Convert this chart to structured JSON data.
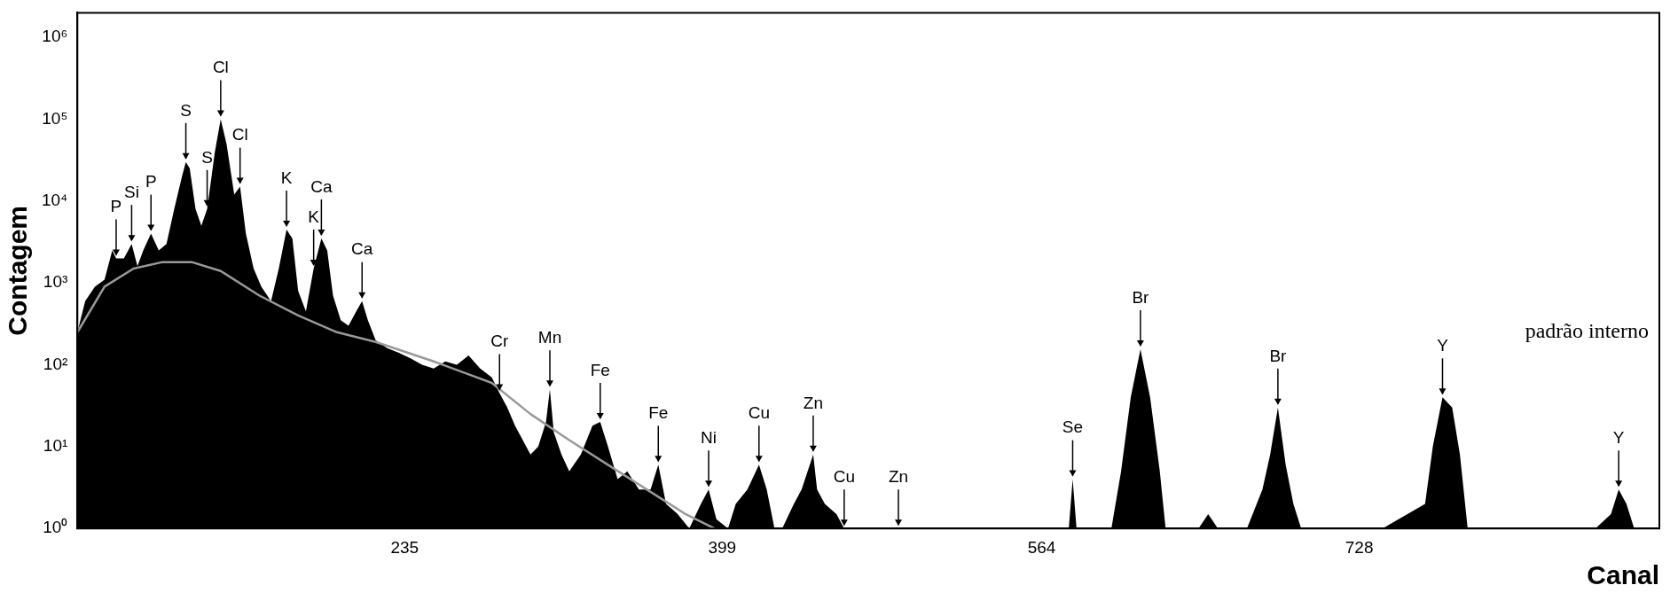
{
  "chart_data": {
    "type": "area",
    "xlabel": "Canal",
    "ylabel": "Contagem",
    "log": "y",
    "grid": false,
    "legend": false,
    "xlim": [
      66,
      883
    ],
    "xticks": [
      235,
      399,
      564,
      728
    ],
    "ylim": [
      1,
      2000000
    ],
    "yticks": [
      {
        "value": 1,
        "label": "10⁰"
      },
      {
        "value": 10,
        "label": "10¹"
      },
      {
        "value": 100,
        "label": "10²"
      },
      {
        "value": 1000,
        "label": "10³"
      },
      {
        "value": 10000,
        "label": "10⁴"
      },
      {
        "value": 100000,
        "label": "10⁵"
      },
      {
        "value": 1000000,
        "label": "10⁶"
      }
    ],
    "series": [
      {
        "type": "area",
        "color": "#000000",
        "x": [
          66,
          70,
          75,
          80,
          84,
          86,
          90,
          94,
          97,
          100,
          104,
          108,
          112,
          116,
          120,
          122,
          124,
          127,
          130,
          133,
          137,
          140,
          143,
          147,
          150,
          153,
          157,
          161,
          166,
          170,
          174,
          177,
          180,
          184,
          188,
          192,
          195,
          198,
          202,
          206,
          210,
          213,
          216,
          220,
          226,
          232,
          238,
          244,
          250,
          256,
          262,
          268,
          274,
          280,
          284,
          288,
          292,
          296,
          300,
          304,
          308,
          310,
          312,
          316,
          320,
          326,
          332,
          336,
          340,
          345,
          350,
          356,
          362,
          366,
          370,
          376,
          382,
          388,
          392,
          396,
          402,
          406,
          412,
          418,
          422,
          426,
          430,
          436,
          440,
          446,
          448,
          452,
          458,
          462,
          470,
          480,
          490,
          500,
          520,
          540,
          560,
          578,
          580,
          582,
          600,
          605,
          610,
          615,
          620,
          625,
          628,
          645,
          650,
          655,
          670,
          678,
          682,
          686,
          690,
          694,
          698,
          740,
          762,
          766,
          771,
          776,
          780,
          784,
          850,
          858,
          862,
          866,
          870,
          883
        ],
        "values": [
          250,
          600,
          900,
          1100,
          2500,
          2000,
          2000,
          3000,
          1600,
          2500,
          4000,
          2500,
          3000,
          8000,
          20000,
          30000,
          25000,
          8000,
          5000,
          8000,
          40000,
          100000,
          50000,
          12000,
          15000,
          4000,
          1500,
          900,
          600,
          1500,
          4500,
          3500,
          800,
          450,
          1500,
          3500,
          2500,
          700,
          350,
          300,
          450,
          600,
          350,
          200,
          160,
          140,
          120,
          100,
          90,
          110,
          100,
          130,
          90,
          70,
          45,
          30,
          18,
          12,
          8,
          10,
          20,
          50,
          15,
          8,
          5,
          8,
          18,
          20,
          10,
          4,
          5,
          3,
          3,
          6,
          2,
          1.5,
          1,
          2,
          3,
          1.3,
          1,
          2,
          3,
          6,
          3,
          1,
          1,
          2,
          3,
          8,
          3,
          2,
          1.5,
          1,
          1,
          1,
          1,
          1,
          1,
          1,
          1,
          1,
          4,
          1,
          1,
          5,
          40,
          155,
          40,
          5,
          1,
          1,
          1.5,
          1,
          1,
          3,
          8,
          30,
          6,
          2,
          1,
          1,
          2,
          10,
          40,
          30,
          8,
          1,
          1,
          1.5,
          3,
          2,
          1,
          1
        ]
      },
      {
        "type": "line",
        "color": "#999999",
        "x": [
          66,
          80,
          95,
          110,
          125,
          140,
          160,
          180,
          200,
          220,
          250,
          280,
          300,
          320,
          340,
          360,
          380,
          395
        ],
        "values": [
          250,
          900,
          1500,
          1800,
          1800,
          1400,
          700,
          400,
          250,
          190,
          110,
          60,
          25,
          12,
          6,
          3,
          1.5,
          1
        ]
      }
    ],
    "annotations": [
      {
        "text": "P",
        "x": 86,
        "y": 2000
      },
      {
        "text": "Si",
        "x": 94,
        "y": 3000
      },
      {
        "text": "P",
        "x": 104,
        "y": 4000
      },
      {
        "text": "S",
        "x": 122,
        "y": 30000
      },
      {
        "text": "S",
        "x": 133,
        "y": 8000
      },
      {
        "text": "Cl",
        "x": 140,
        "y": 100000
      },
      {
        "text": "Cl",
        "x": 150,
        "y": 15000
      },
      {
        "text": "K",
        "x": 174,
        "y": 4500
      },
      {
        "text": "Ca",
        "x": 192,
        "y": 3500
      },
      {
        "text": "K",
        "x": 188,
        "y": 1500
      },
      {
        "text": "Ca",
        "x": 213,
        "y": 600
      },
      {
        "text": "Cr",
        "x": 284,
        "y": 45
      },
      {
        "text": "Mn",
        "x": 310,
        "y": 50
      },
      {
        "text": "Fe",
        "x": 336,
        "y": 20
      },
      {
        "text": "Fe",
        "x": 366,
        "y": 6
      },
      {
        "text": "Ni",
        "x": 392,
        "y": 3
      },
      {
        "text": "Cu",
        "x": 418,
        "y": 6
      },
      {
        "text": "Zn",
        "x": 446,
        "y": 8
      },
      {
        "text": "Cu",
        "x": 462,
        "y": 1
      },
      {
        "text": "Zn",
        "x": 490,
        "y": 1
      },
      {
        "text": "Se",
        "x": 580,
        "y": 4
      },
      {
        "text": "Br",
        "x": 615,
        "y": 155
      },
      {
        "text": "Br",
        "x": 686,
        "y": 30
      },
      {
        "text": "Y",
        "x": 771,
        "y": 40
      },
      {
        "text": "Y",
        "x": 862,
        "y": 3
      },
      "padrão interno"
    ]
  }
}
